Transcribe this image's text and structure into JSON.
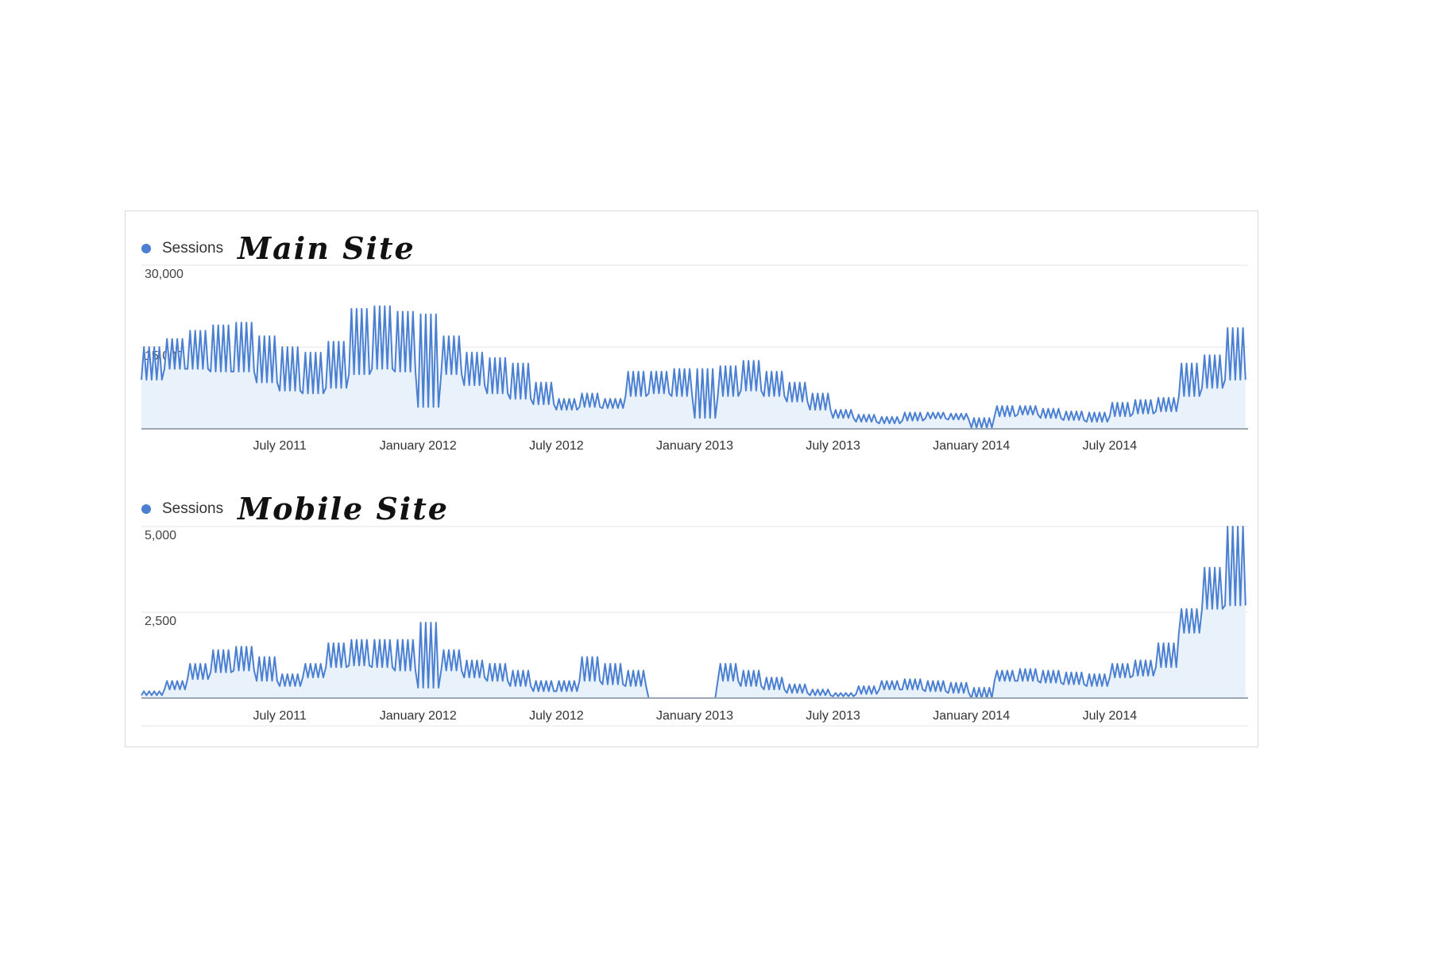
{
  "colors": {
    "series": "#4a7fd1",
    "area": "#e9f1fb",
    "grid": "#e6e6e6",
    "axis": "#9aa7b4"
  },
  "chart_data": [
    {
      "type": "area",
      "legend": "Sessions",
      "title": "Main Site",
      "ylim": [
        0,
        30000
      ],
      "yticks": [
        "30,000",
        "15,000"
      ],
      "ytick_values": [
        30000,
        15000
      ],
      "xlim": [
        "2011-01",
        "2014-12"
      ],
      "xticks": [
        "July 2011",
        "January 2012",
        "July 2012",
        "January 2013",
        "July 2013",
        "January 2014",
        "July 2014"
      ],
      "xtick_values": [
        "2011-07",
        "2012-01",
        "2012-07",
        "2013-01",
        "2013-07",
        "2014-01",
        "2014-07"
      ],
      "grid": true,
      "series": [
        {
          "values_by_month": {
            "x": [
              "2011-01",
              "2011-02",
              "2011-03",
              "2011-04",
              "2011-05",
              "2011-06",
              "2011-07",
              "2011-08",
              "2011-09",
              "2011-10",
              "2011-11",
              "2011-12",
              "2012-01",
              "2012-02",
              "2012-03",
              "2012-04",
              "2012-05",
              "2012-06",
              "2012-07",
              "2012-08",
              "2012-09",
              "2012-10",
              "2012-11",
              "2012-12",
              "2013-01",
              "2013-02",
              "2013-03",
              "2013-04",
              "2013-05",
              "2013-06",
              "2013-07",
              "2013-08",
              "2013-09",
              "2013-10",
              "2013-11",
              "2013-12",
              "2014-01",
              "2014-02",
              "2014-03",
              "2014-04",
              "2014-05",
              "2014-06",
              "2014-07",
              "2014-08",
              "2014-09",
              "2014-10",
              "2014-11",
              "2014-12"
            ],
            "low": [
              9000,
              11000,
              11000,
              10500,
              10500,
              8500,
              7000,
              6500,
              7500,
              10000,
              11000,
              10500,
              4000,
              10000,
              8000,
              6500,
              5500,
              4500,
              3500,
              4000,
              3800,
              6000,
              6500,
              6000,
              2000,
              6000,
              7000,
              6000,
              5000,
              3500,
              2000,
              1300,
              1000,
              1500,
              1900,
              1700,
              200,
              2300,
              2600,
              2000,
              1600,
              1300,
              2300,
              2800,
              3200,
              6000,
              7500,
              9000
            ],
            "high": [
              15000,
              16500,
              18000,
              19000,
              19500,
              17000,
              15000,
              14000,
              16000,
              22000,
              22500,
              21500,
              21000,
              17000,
              14000,
              13000,
              12000,
              8500,
              5500,
              6500,
              5500,
              10500,
              10500,
              11000,
              11000,
              11500,
              12500,
              10500,
              8500,
              6500,
              3500,
              2600,
              2200,
              3000,
              3000,
              2800,
              2000,
              4200,
              4200,
              3700,
              3200,
              3000,
              4800,
              5300,
              5700,
              12000,
              13500,
              18500
            ]
          }
        }
      ]
    },
    {
      "type": "area",
      "legend": "Sessions",
      "title": "Mobile Site",
      "ylim": [
        0,
        5000
      ],
      "yticks": [
        "5,000",
        "2,500"
      ],
      "ytick_values": [
        5000,
        2500
      ],
      "xlim": [
        "2011-01",
        "2014-12"
      ],
      "xticks": [
        "July 2011",
        "January 2012",
        "July 2012",
        "January 2013",
        "July 2013",
        "January 2014",
        "July 2014"
      ],
      "xtick_values": [
        "2011-07",
        "2012-01",
        "2012-07",
        "2013-01",
        "2013-07",
        "2014-01",
        "2014-07"
      ],
      "grid": true,
      "series": [
        {
          "values_by_month": {
            "x": [
              "2011-01",
              "2011-02",
              "2011-03",
              "2011-04",
              "2011-05",
              "2011-06",
              "2011-07",
              "2011-08",
              "2011-09",
              "2011-10",
              "2011-11",
              "2011-12",
              "2012-01",
              "2012-02",
              "2012-03",
              "2012-04",
              "2012-05",
              "2012-06",
              "2012-07",
              "2012-08",
              "2012-09",
              "2012-10",
              "2012-11",
              "2012-12",
              "2013-01",
              "2013-02",
              "2013-03",
              "2013-04",
              "2013-05",
              "2013-06",
              "2013-07",
              "2013-08",
              "2013-09",
              "2013-10",
              "2013-11",
              "2013-12",
              "2014-01",
              "2014-02",
              "2014-03",
              "2014-04",
              "2014-05",
              "2014-06",
              "2014-07",
              "2014-08",
              "2014-09",
              "2014-10",
              "2014-11",
              "2014-12"
            ],
            "low": [
              80,
              250,
              550,
              750,
              800,
              500,
              350,
              600,
              900,
              950,
              900,
              800,
              300,
              800,
              600,
              500,
              350,
              200,
              200,
              500,
              400,
              350,
              0,
              0,
              0,
              500,
              350,
              250,
              150,
              80,
              50,
              120,
              250,
              250,
              200,
              150,
              0,
              500,
              500,
              450,
              400,
              350,
              600,
              650,
              900,
              1900,
              2600,
              2700
            ],
            "high": [
              200,
              500,
              1000,
              1400,
              1500,
              1200,
              700,
              1000,
              1600,
              1700,
              1700,
              1700,
              2200,
              1400,
              1100,
              1000,
              800,
              500,
              500,
              1200,
              1000,
              800,
              0,
              0,
              0,
              1000,
              800,
              600,
              400,
              250,
              150,
              350,
              500,
              550,
              500,
              450,
              300,
              800,
              850,
              800,
              750,
              700,
              1000,
              1100,
              1600,
              2600,
              3800,
              5000
            ]
          }
        }
      ]
    }
  ]
}
